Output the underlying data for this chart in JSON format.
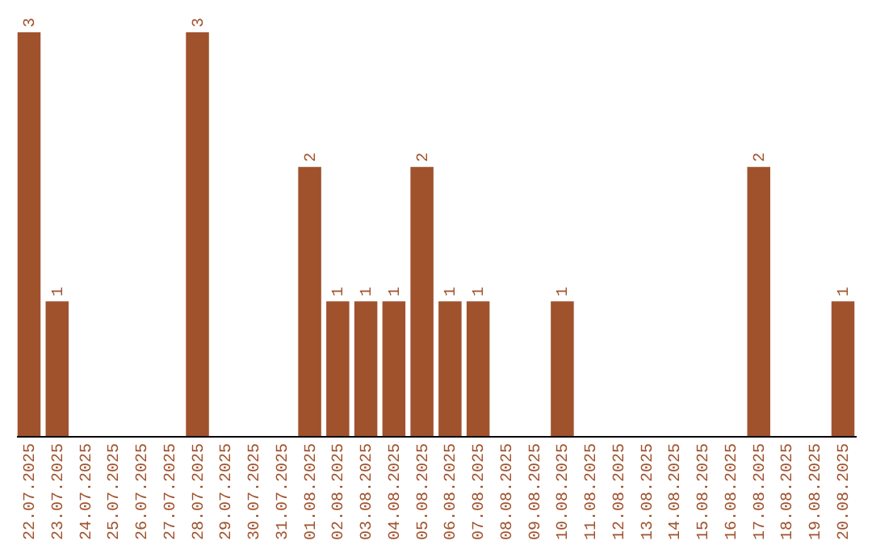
{
  "chart_data": {
    "type": "bar",
    "categories": [
      "22.07.2025",
      "23.07.2025",
      "24.07.2025",
      "25.07.2025",
      "26.07.2025",
      "27.07.2025",
      "28.07.2025",
      "29.07.2025",
      "30.07.2025",
      "31.07.2025",
      "01.08.2025",
      "02.08.2025",
      "03.08.2025",
      "04.08.2025",
      "05.08.2025",
      "06.08.2025",
      "07.08.2025",
      "08.08.2025",
      "09.08.2025",
      "10.08.2025",
      "11.08.2025",
      "12.08.2025",
      "13.08.2025",
      "14.08.2025",
      "15.08.2025",
      "16.08.2025",
      "17.08.2025",
      "18.08.2025",
      "19.08.2025",
      "20.08.2025"
    ],
    "values": [
      3,
      1,
      0,
      0,
      0,
      0,
      3,
      0,
      0,
      0,
      2,
      1,
      1,
      1,
      2,
      1,
      1,
      0,
      0,
      1,
      0,
      0,
      0,
      0,
      0,
      0,
      2,
      0,
      0,
      1
    ],
    "value_labels": [
      "3",
      "1",
      null,
      null,
      null,
      null,
      "3",
      null,
      null,
      null,
      "2",
      "1",
      "1",
      "1",
      "2",
      "1",
      "1",
      null,
      null,
      "1",
      null,
      null,
      null,
      null,
      null,
      null,
      "2",
      null,
      null,
      "1"
    ],
    "color": "#a0522d",
    "grid": false
  }
}
